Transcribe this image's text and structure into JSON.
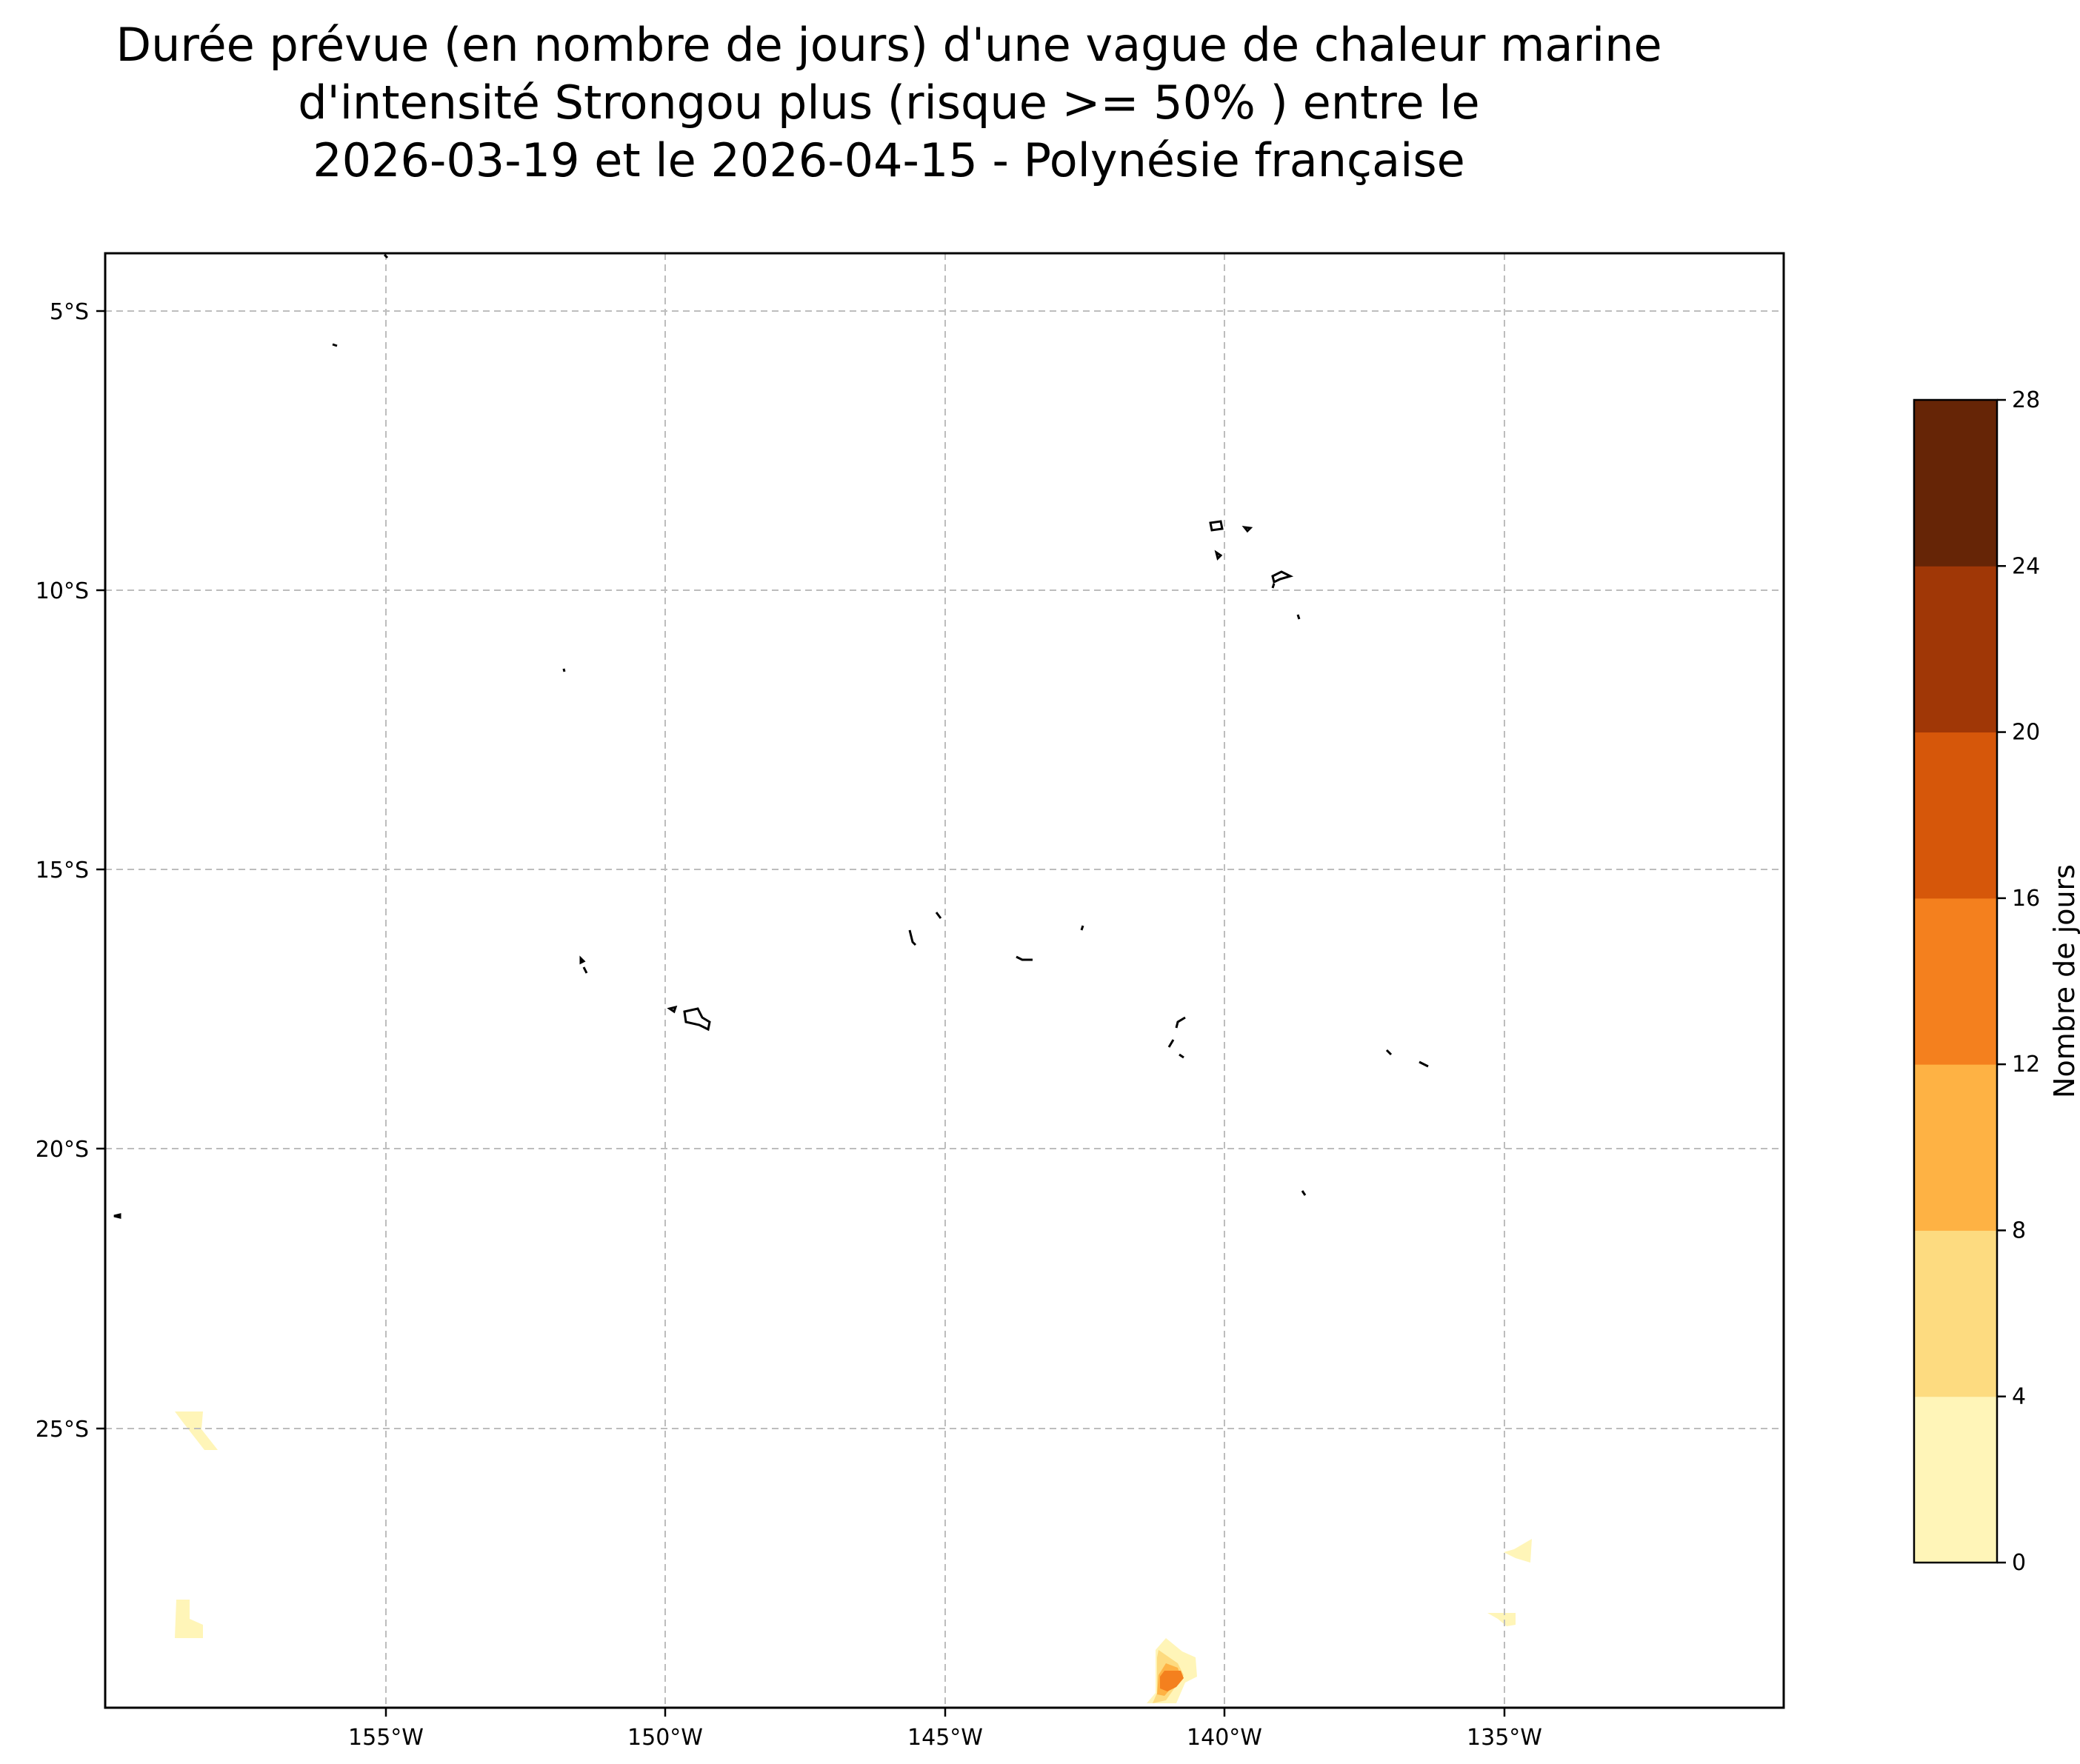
{
  "title": {
    "line1": "Durée prévue (en nombre de jours) d'une vague de chaleur marine",
    "line2": "d'intensité Strongou plus (risque >= 50% ) entre le",
    "line3": "2026-03-19 et le 2026-04-15 - Polynésie française"
  },
  "map": {
    "lon_range": [
      -160,
      -130
    ],
    "lat_range": [
      -29.9,
      -3.9
    ],
    "lon_ticks": [
      "155°W",
      "150°W",
      "145°W",
      "140°W",
      "135°W"
    ],
    "lat_ticks": [
      "5°S",
      "10°S",
      "15°S",
      "20°S",
      "25°S"
    ],
    "gridlines": true,
    "coastline_color": "#000000"
  },
  "colorbar": {
    "label": "Nombre de jours",
    "ticks": [
      "0",
      "4",
      "8",
      "12",
      "16",
      "20",
      "24",
      "28"
    ],
    "levels": [
      0,
      4,
      8,
      12,
      16,
      20,
      24,
      28
    ],
    "colors": [
      "#fff5b8",
      "#fddb80",
      "#feb244",
      "#f4801e",
      "#d6570a",
      "#a03706",
      "#662506"
    ]
  },
  "heat_patches": [
    {
      "level": 0,
      "region": "near 158°W 25°S"
    },
    {
      "level": 0,
      "region": "near 158°W 28.5°S"
    },
    {
      "level": 1,
      "region": "near 141°W 29.5°S"
    },
    {
      "level": 3,
      "region": "near 141°W 29.6°S"
    },
    {
      "level": 0,
      "region": "near 134.5°W 27.3°S"
    },
    {
      "level": 0,
      "region": "near 135°W 28.6°S"
    }
  ]
}
